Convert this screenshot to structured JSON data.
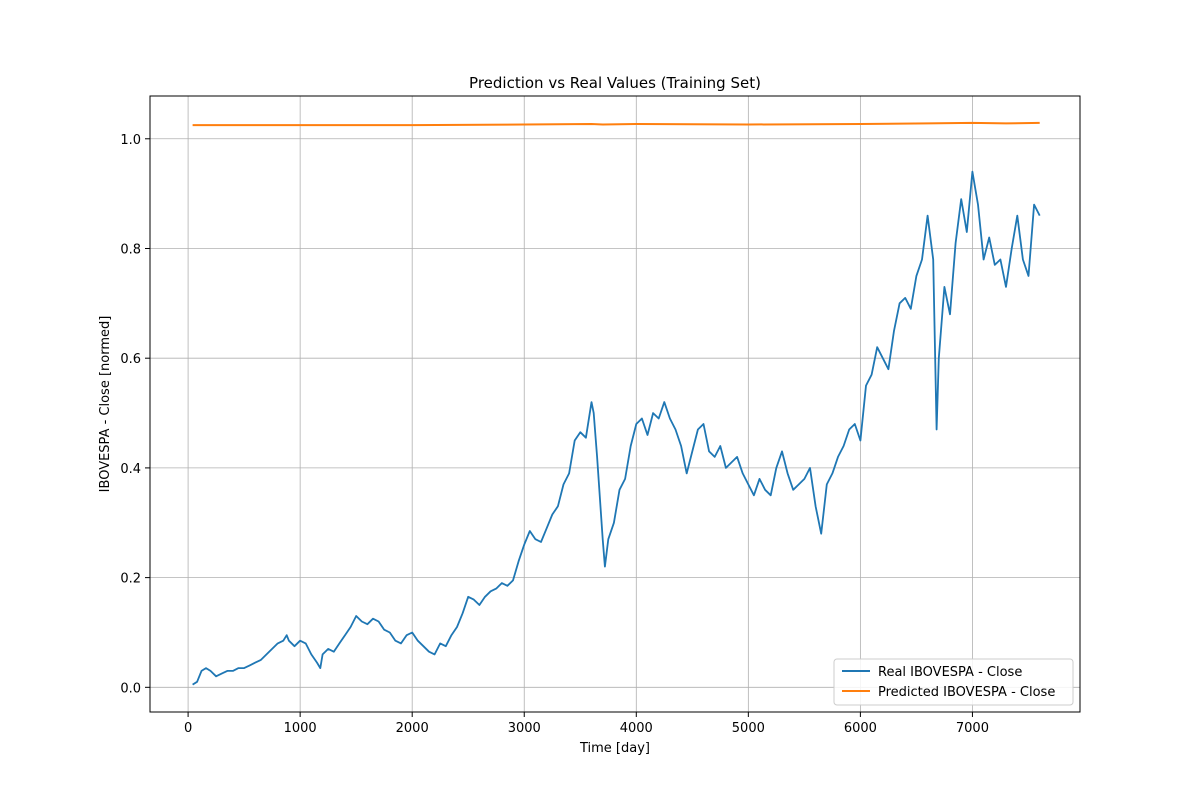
{
  "chart_data": {
    "type": "line",
    "title": "Prediction vs Real Values (Training Set)",
    "xlabel": "Time [day]",
    "ylabel": "IBOVESPA - Close [normed]",
    "xlim": [
      -340,
      7960
    ],
    "ylim": [
      -0.045,
      1.078
    ],
    "xticks": [
      0,
      1000,
      2000,
      3000,
      4000,
      5000,
      6000,
      7000
    ],
    "xtick_labels": [
      "0",
      "1000",
      "2000",
      "3000",
      "4000",
      "5000",
      "6000",
      "7000"
    ],
    "yticks": [
      0.0,
      0.2,
      0.4,
      0.6,
      0.8,
      1.0
    ],
    "ytick_labels": [
      "0.0",
      "0.2",
      "0.4",
      "0.6",
      "0.8",
      "1.0"
    ],
    "grid": true,
    "legend_position": "lower-right",
    "series": [
      {
        "name": "Real IBOVESPA - Close",
        "color": "#1f77b4",
        "x": [
          40,
          80,
          120,
          160,
          200,
          250,
          300,
          350,
          400,
          450,
          500,
          550,
          600,
          650,
          700,
          750,
          800,
          850,
          880,
          900,
          950,
          1000,
          1050,
          1100,
          1150,
          1180,
          1200,
          1250,
          1300,
          1350,
          1400,
          1450,
          1500,
          1550,
          1600,
          1650,
          1700,
          1750,
          1800,
          1850,
          1900,
          1950,
          2000,
          2050,
          2100,
          2150,
          2200,
          2250,
          2300,
          2350,
          2400,
          2450,
          2500,
          2550,
          2600,
          2650,
          2700,
          2750,
          2800,
          2850,
          2900,
          2950,
          3000,
          3050,
          3100,
          3150,
          3200,
          3250,
          3300,
          3350,
          3400,
          3450,
          3500,
          3550,
          3600,
          3620,
          3650,
          3700,
          3720,
          3750,
          3800,
          3850,
          3900,
          3950,
          4000,
          4050,
          4100,
          4150,
          4200,
          4250,
          4300,
          4350,
          4400,
          4450,
          4500,
          4550,
          4600,
          4650,
          4700,
          4750,
          4800,
          4850,
          4900,
          4950,
          5000,
          5050,
          5100,
          5150,
          5200,
          5250,
          5300,
          5350,
          5400,
          5450,
          5500,
          5550,
          5600,
          5650,
          5700,
          5750,
          5800,
          5850,
          5900,
          5950,
          6000,
          6050,
          6100,
          6150,
          6200,
          6250,
          6300,
          6350,
          6400,
          6450,
          6500,
          6550,
          6600,
          6650,
          6680,
          6700,
          6750,
          6800,
          6850,
          6900,
          6950,
          7000,
          7050,
          7100,
          7150,
          7200,
          7250,
          7300,
          7350,
          7400,
          7450,
          7500,
          7550,
          7600
        ],
        "values": [
          0.005,
          0.01,
          0.03,
          0.035,
          0.03,
          0.02,
          0.025,
          0.03,
          0.03,
          0.035,
          0.035,
          0.04,
          0.045,
          0.05,
          0.06,
          0.07,
          0.08,
          0.085,
          0.095,
          0.085,
          0.075,
          0.085,
          0.08,
          0.06,
          0.045,
          0.035,
          0.06,
          0.07,
          0.065,
          0.08,
          0.095,
          0.11,
          0.13,
          0.12,
          0.115,
          0.125,
          0.12,
          0.105,
          0.1,
          0.085,
          0.08,
          0.095,
          0.1,
          0.085,
          0.075,
          0.065,
          0.06,
          0.08,
          0.075,
          0.095,
          0.11,
          0.135,
          0.165,
          0.16,
          0.15,
          0.165,
          0.175,
          0.18,
          0.19,
          0.185,
          0.195,
          0.23,
          0.26,
          0.285,
          0.27,
          0.265,
          0.29,
          0.315,
          0.33,
          0.37,
          0.39,
          0.45,
          0.465,
          0.455,
          0.52,
          0.5,
          0.42,
          0.27,
          0.22,
          0.27,
          0.3,
          0.36,
          0.38,
          0.44,
          0.48,
          0.49,
          0.46,
          0.5,
          0.49,
          0.52,
          0.49,
          0.47,
          0.44,
          0.39,
          0.43,
          0.47,
          0.48,
          0.43,
          0.42,
          0.44,
          0.4,
          0.41,
          0.42,
          0.39,
          0.37,
          0.35,
          0.38,
          0.36,
          0.35,
          0.4,
          0.43,
          0.39,
          0.36,
          0.37,
          0.38,
          0.4,
          0.33,
          0.28,
          0.37,
          0.39,
          0.42,
          0.44,
          0.47,
          0.48,
          0.45,
          0.55,
          0.57,
          0.62,
          0.6,
          0.58,
          0.65,
          0.7,
          0.71,
          0.69,
          0.75,
          0.78,
          0.86,
          0.78,
          0.47,
          0.6,
          0.73,
          0.68,
          0.81,
          0.89,
          0.83,
          0.94,
          0.88,
          0.78,
          0.82,
          0.77,
          0.78,
          0.73,
          0.8,
          0.86,
          0.78,
          0.75,
          0.88,
          0.86
        ]
      },
      {
        "name": "Predicted IBOVESPA - Close",
        "color": "#ff7f0e",
        "x": [
          40,
          1000,
          2000,
          3000,
          3600,
          3700,
          4000,
          5000,
          6000,
          6600,
          7000,
          7300,
          7600
        ],
        "values": [
          1.025,
          1.025,
          1.025,
          1.026,
          1.027,
          1.026,
          1.027,
          1.026,
          1.027,
          1.028,
          1.029,
          1.028,
          1.029
        ]
      }
    ]
  }
}
